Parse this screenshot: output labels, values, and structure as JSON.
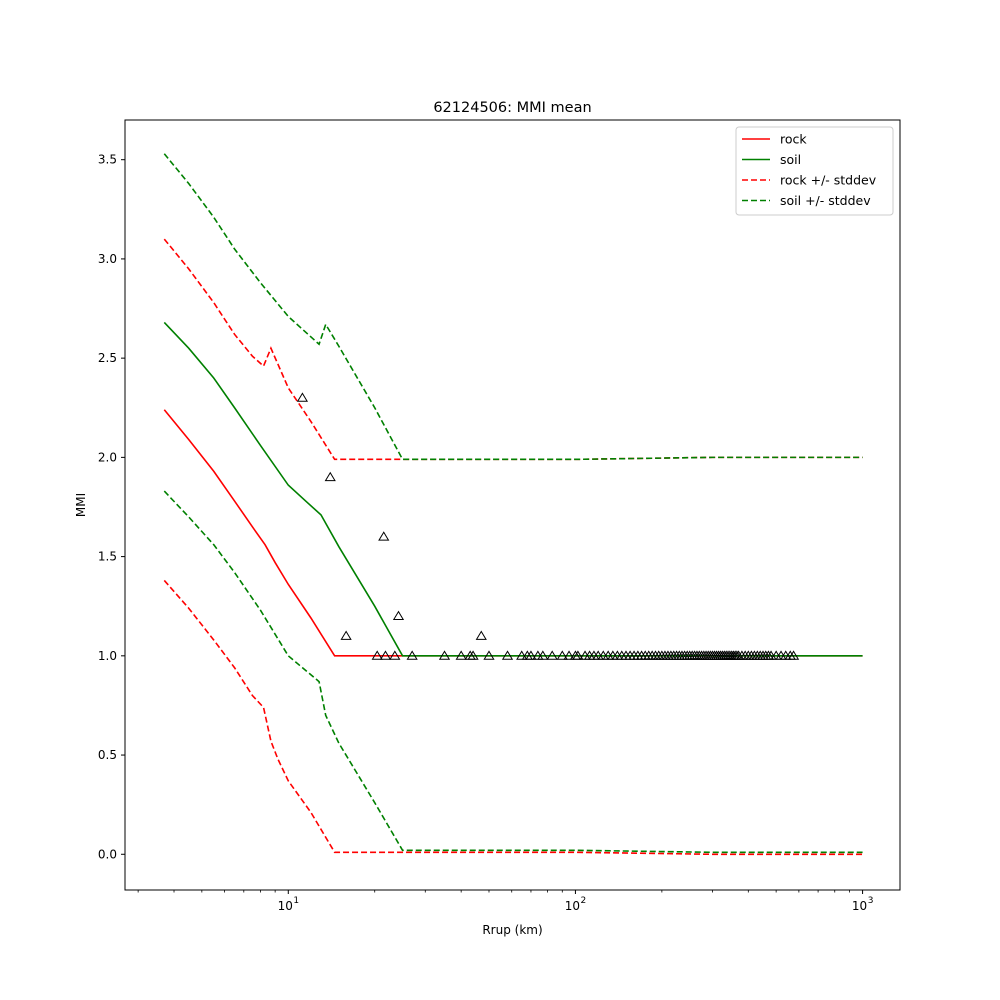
{
  "chart_data": {
    "type": "line",
    "title": "62124506: MMI mean",
    "xlabel": "Rrup (km)",
    "ylabel": "MMI",
    "xscale": "log",
    "xlim": [
      2.7,
      1350
    ],
    "ylim": [
      -0.18,
      3.7
    ],
    "yticks": [
      0.0,
      0.5,
      1.0,
      1.5,
      2.0,
      2.5,
      3.0,
      3.5
    ],
    "ytick_labels": [
      "0.0",
      "0.5",
      "1.0",
      "1.5",
      "2.0",
      "2.5",
      "3.0",
      "3.5"
    ],
    "xticks": [
      10,
      100,
      1000
    ],
    "xtick_labels": [
      [
        "10",
        "1"
      ],
      [
        "10",
        "2"
      ],
      [
        "10",
        "3"
      ]
    ],
    "grid": false,
    "legend_position": "top-right",
    "series": [
      {
        "name": "rock",
        "color": "#ff0000",
        "style": "solid",
        "x": [
          3.7,
          4.5,
          5.5,
          6.5,
          7.5,
          8.3,
          9.0,
          10,
          12,
          14.5,
          20,
          30,
          60,
          100,
          300,
          1000
        ],
        "y": [
          2.24,
          2.09,
          1.93,
          1.78,
          1.65,
          1.56,
          1.47,
          1.36,
          1.19,
          1.0,
          1.0,
          1.0,
          1.0,
          1.0,
          1.0,
          1.0
        ]
      },
      {
        "name": "soil",
        "color": "#008000",
        "style": "solid",
        "x": [
          3.7,
          4.5,
          5.5,
          6.5,
          8,
          10,
          11.5,
          13,
          15,
          20,
          25,
          40,
          100,
          300,
          1000
        ],
        "y": [
          2.68,
          2.55,
          2.4,
          2.25,
          2.06,
          1.86,
          1.78,
          1.71,
          1.55,
          1.25,
          1.0,
          1.0,
          1.0,
          1.0,
          1.0
        ]
      },
      {
        "name": "rock +/- stddev",
        "color": "#ff0000",
        "style": "dashed",
        "x": [
          3.7,
          4.5,
          5.5,
          6.5,
          7.5,
          8.2,
          8.7,
          9.2,
          10,
          12,
          14.5,
          30,
          100,
          300,
          1000
        ],
        "y": [
          3.1,
          2.95,
          2.78,
          2.62,
          2.51,
          2.46,
          2.55,
          2.47,
          2.35,
          2.18,
          1.99,
          1.99,
          1.99,
          2.0,
          2.0
        ],
        "y_lower": [
          1.38,
          1.24,
          1.08,
          0.94,
          0.8,
          0.74,
          0.57,
          0.48,
          0.37,
          0.21,
          0.01,
          0.01,
          0.01,
          0.0,
          0.0
        ]
      },
      {
        "name": "soil +/- stddev",
        "color": "#008000",
        "style": "dashed",
        "x": [
          3.7,
          4.5,
          5.5,
          6.5,
          8,
          10,
          12.8,
          13.5,
          15,
          20,
          25,
          40,
          100,
          300,
          1000
        ],
        "y": [
          3.53,
          3.38,
          3.21,
          3.05,
          2.88,
          2.71,
          2.57,
          2.67,
          2.56,
          2.25,
          1.99,
          1.99,
          1.99,
          2.0,
          2.0
        ],
        "y_lower": [
          1.83,
          1.7,
          1.56,
          1.42,
          1.23,
          1.0,
          0.87,
          0.7,
          0.56,
          0.26,
          0.02,
          0.02,
          0.02,
          0.01,
          0.01
        ]
      }
    ],
    "observations": {
      "marker": "triangle",
      "color": "#000000",
      "points": [
        [
          11.2,
          2.3
        ],
        [
          14.0,
          1.9
        ],
        [
          15.9,
          1.1
        ],
        [
          21.5,
          1.6
        ],
        [
          24.2,
          1.2
        ],
        [
          47.0,
          1.1
        ],
        [
          20.4,
          1.0
        ],
        [
          21.8,
          1.0
        ],
        [
          23.5,
          1.0
        ],
        [
          27.0,
          1.0
        ],
        [
          35,
          1.0
        ],
        [
          40,
          1.0
        ],
        [
          43,
          1.0
        ],
        [
          44,
          1.0
        ],
        [
          50,
          1.0
        ],
        [
          58,
          1.0
        ],
        [
          65,
          1.0
        ],
        [
          68,
          1.0
        ],
        [
          70,
          1.0
        ],
        [
          74,
          1.0
        ],
        [
          77,
          1.0
        ],
        [
          83,
          1.0
        ],
        [
          90,
          1.0
        ],
        [
          95,
          1.0
        ],
        [
          100,
          1.0
        ],
        [
          102,
          1.0
        ],
        [
          108,
          1.0
        ],
        [
          112,
          1.0
        ],
        [
          116,
          1.0
        ],
        [
          120,
          1.0
        ],
        [
          125,
          1.0
        ],
        [
          130,
          1.0
        ],
        [
          135,
          1.0
        ],
        [
          140,
          1.0
        ],
        [
          145,
          1.0
        ],
        [
          150,
          1.0
        ],
        [
          155,
          1.0
        ],
        [
          160,
          1.0
        ],
        [
          165,
          1.0
        ],
        [
          170,
          1.0
        ],
        [
          175,
          1.0
        ],
        [
          180,
          1.0
        ],
        [
          185,
          1.0
        ],
        [
          190,
          1.0
        ],
        [
          195,
          1.0
        ],
        [
          200,
          1.0
        ],
        [
          205,
          1.0
        ],
        [
          210,
          1.0
        ],
        [
          215,
          1.0
        ],
        [
          220,
          1.0
        ],
        [
          225,
          1.0
        ],
        [
          230,
          1.0
        ],
        [
          235,
          1.0
        ],
        [
          240,
          1.0
        ],
        [
          245,
          1.0
        ],
        [
          250,
          1.0
        ],
        [
          255,
          1.0
        ],
        [
          260,
          1.0
        ],
        [
          265,
          1.0
        ],
        [
          270,
          1.0
        ],
        [
          275,
          1.0
        ],
        [
          280,
          1.0
        ],
        [
          285,
          1.0
        ],
        [
          290,
          1.0
        ],
        [
          295,
          1.0
        ],
        [
          300,
          1.0
        ],
        [
          305,
          1.0
        ],
        [
          310,
          1.0
        ],
        [
          315,
          1.0
        ],
        [
          320,
          1.0
        ],
        [
          325,
          1.0
        ],
        [
          330,
          1.0
        ],
        [
          335,
          1.0
        ],
        [
          340,
          1.0
        ],
        [
          345,
          1.0
        ],
        [
          350,
          1.0
        ],
        [
          355,
          1.0
        ],
        [
          360,
          1.0
        ],
        [
          365,
          1.0
        ],
        [
          370,
          1.0
        ],
        [
          380,
          1.0
        ],
        [
          390,
          1.0
        ],
        [
          400,
          1.0
        ],
        [
          410,
          1.0
        ],
        [
          420,
          1.0
        ],
        [
          430,
          1.0
        ],
        [
          440,
          1.0
        ],
        [
          450,
          1.0
        ],
        [
          460,
          1.0
        ],
        [
          470,
          1.0
        ],
        [
          480,
          1.0
        ],
        [
          500,
          1.0
        ],
        [
          520,
          1.0
        ],
        [
          540,
          1.0
        ],
        [
          560,
          1.0
        ],
        [
          575,
          1.0
        ]
      ]
    }
  }
}
